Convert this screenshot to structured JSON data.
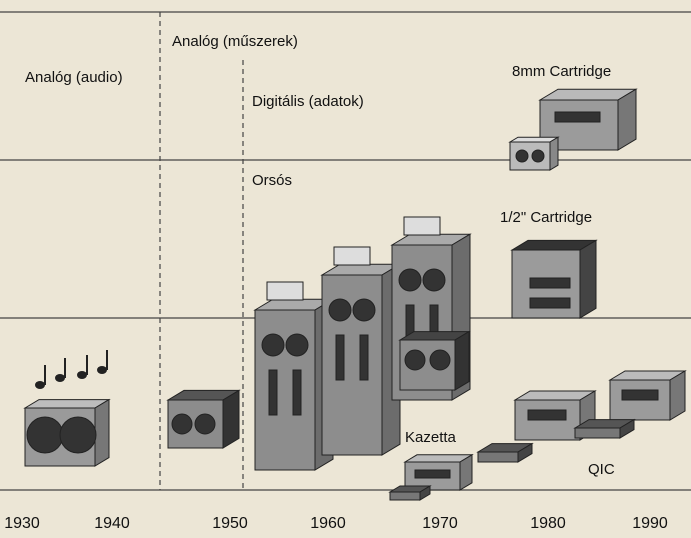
{
  "labels": {
    "audio": "Analóg (audio)",
    "instruments": "Analóg (műszerek)",
    "digital": "Digitális (adatok)",
    "reel": "Orsós",
    "cartridge_8mm": "8mm Cartridge",
    "cartridge_half_inch": "1/2\" Cartridge",
    "cassette": "Kazetta",
    "qic": "QIC"
  },
  "timeline": {
    "years": [
      "1930",
      "1940",
      "1950",
      "1960",
      "1970",
      "1980",
      "1990"
    ]
  }
}
